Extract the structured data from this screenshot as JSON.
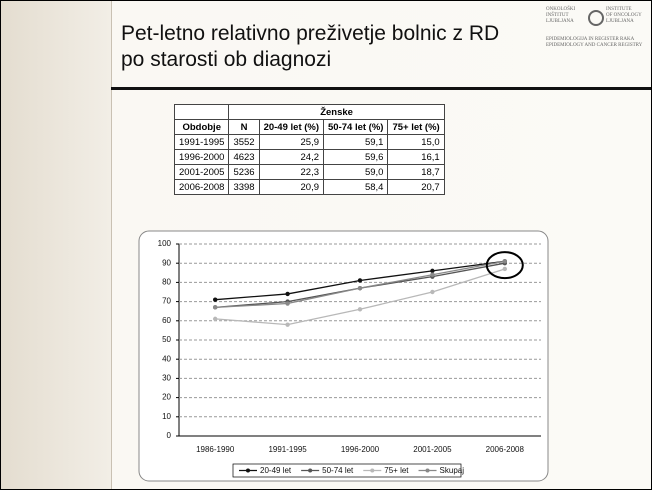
{
  "slide_title": "Pet-letno relativno preživetje bolnic z RD po starosti ob diagnozi",
  "logo": {
    "left": [
      "ONKOLOŠKI",
      "INŠTITUT",
      "LJUBLJANA"
    ],
    "right": [
      "INSTITUTE",
      "OF ONCOLOGY",
      "LJUBLJANA"
    ],
    "bottom": [
      "EPIDEMIOLOGIJA IN REGISTER RAKA",
      "EPIDEMIOLOGY AND CANCER REGISTRY"
    ]
  },
  "table": {
    "group_header": "Ženske",
    "columns": [
      "Obdobje",
      "N",
      "20-49 let (%)",
      "50-74 let (%)",
      "75+ let (%)"
    ],
    "rows": [
      [
        "1991-1995",
        "3552",
        "25,9",
        "59,1",
        "15,0"
      ],
      [
        "1996-2000",
        "4623",
        "24,2",
        "59,6",
        "16,1"
      ],
      [
        "2001-2005",
        "5236",
        "22,3",
        "59,0",
        "18,7"
      ],
      [
        "2006-2008",
        "3398",
        "20,9",
        "58,4",
        "20,7"
      ]
    ]
  },
  "chart_data": {
    "type": "line",
    "categories": [
      "1986-1990",
      "1991-1995",
      "1996-2000",
      "2001-2005",
      "2006-2008"
    ],
    "series": [
      {
        "name": "20-49 let",
        "color": "#111111",
        "values": [
          71,
          74,
          81,
          86,
          91
        ]
      },
      {
        "name": "50-74 let",
        "color": "#555555",
        "values": [
          67,
          70,
          77,
          83,
          90
        ]
      },
      {
        "name": "75+ let",
        "color": "#b8b8b8",
        "values": [
          61,
          58,
          66,
          75,
          87
        ]
      },
      {
        "name": "Skupaj",
        "color": "#888888",
        "values": [
          67,
          69,
          77,
          84,
          91
        ]
      }
    ],
    "ylim": [
      0,
      100
    ],
    "yticks": [
      0,
      10,
      20,
      30,
      40,
      50,
      60,
      70,
      80,
      90,
      100
    ],
    "grid": true
  }
}
